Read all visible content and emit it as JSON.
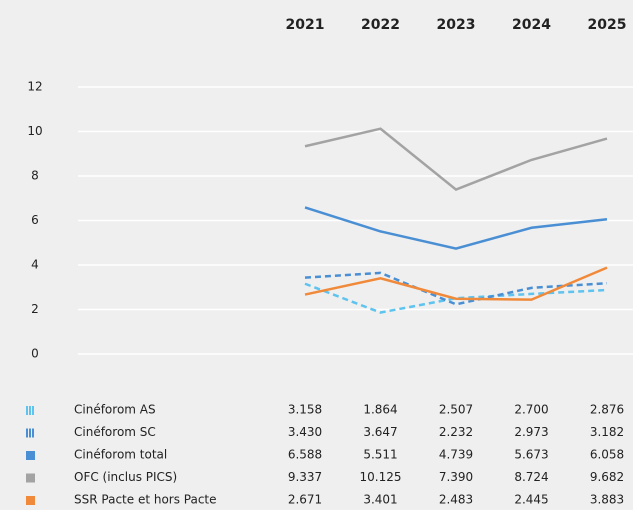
{
  "chart_data": {
    "type": "line",
    "categories": [
      "2021",
      "2022",
      "2023",
      "2024",
      "2025"
    ],
    "ylim": [
      0,
      12
    ],
    "yticks": [
      0,
      2,
      4,
      6,
      8,
      10,
      12
    ],
    "grid": true,
    "series": [
      {
        "name": "Cinéforom AS",
        "color": "#5ec3ee",
        "dash": true,
        "icon": "striped",
        "values": [
          3.158,
          1.864,
          2.507,
          2.7,
          2.876
        ],
        "value_labels": [
          "3.158",
          "1.864",
          "2.507",
          "2.700",
          "2.876"
        ]
      },
      {
        "name": "Cinéforom SC",
        "color": "#4a8fd4",
        "dash": true,
        "icon": "striped",
        "values": [
          3.43,
          3.647,
          2.232,
          2.973,
          3.182
        ],
        "value_labels": [
          "3.430",
          "3.647",
          "2.232",
          "2.973",
          "3.182"
        ]
      },
      {
        "name": "Cinéforom total",
        "color": "#4a8fd4",
        "dash": false,
        "icon": "square",
        "values": [
          6.588,
          5.511,
          4.739,
          5.673,
          6.058
        ],
        "value_labels": [
          "6.588",
          "5.511",
          "4.739",
          "5.673",
          "6.058"
        ]
      },
      {
        "name": "OFC (inclus PICS)",
        "color": "#a3a3a3",
        "dash": false,
        "icon": "square",
        "values": [
          9.337,
          10.125,
          7.39,
          8.724,
          9.682
        ],
        "value_labels": [
          "9.337",
          "10.125",
          "7.390",
          "8.724",
          "9.682"
        ]
      },
      {
        "name": "SSR Pacte et hors Pacte",
        "color": "#f08a3a",
        "dash": false,
        "icon": "square",
        "values": [
          2.671,
          3.401,
          2.483,
          2.445,
          3.883
        ],
        "value_labels": [
          "2.671",
          "3.401",
          "2.483",
          "2.445",
          "3.883"
        ]
      }
    ]
  }
}
